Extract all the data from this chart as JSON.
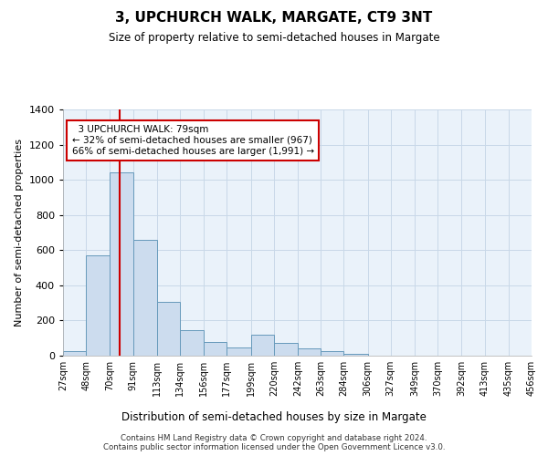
{
  "title": "3, UPCHURCH WALK, MARGATE, CT9 3NT",
  "subtitle": "Size of property relative to semi-detached houses in Margate",
  "xlabel": "Distribution of semi-detached houses by size in Margate",
  "ylabel": "Number of semi-detached properties",
  "property_label": "3 UPCHURCH WALK: 79sqm",
  "smaller_pct": "32% of semi-detached houses are smaller (967)",
  "larger_pct": "66% of semi-detached houses are larger (1,991)",
  "property_size": 79,
  "bin_edges": [
    27,
    48,
    70,
    91,
    113,
    134,
    156,
    177,
    199,
    220,
    242,
    263,
    284,
    306,
    327,
    349,
    370,
    392,
    413,
    435,
    456
  ],
  "bin_labels": [
    "27sqm",
    "48sqm",
    "70sqm",
    "91sqm",
    "113sqm",
    "134sqm",
    "156sqm",
    "177sqm",
    "199sqm",
    "220sqm",
    "242sqm",
    "263sqm",
    "284sqm",
    "306sqm",
    "327sqm",
    "349sqm",
    "370sqm",
    "392sqm",
    "413sqm",
    "435sqm",
    "456sqm"
  ],
  "bar_heights": [
    25,
    570,
    1040,
    660,
    305,
    145,
    80,
    45,
    120,
    75,
    40,
    25,
    8,
    0,
    0,
    0,
    0,
    0,
    0,
    0
  ],
  "bar_color": "#ccdcee",
  "bar_edge_color": "#6699bb",
  "vline_color": "#cc0000",
  "annotation_box_color": "#cc0000",
  "grid_color": "#c8d8e8",
  "bg_color": "#eaf2fa",
  "footer_text": "Contains HM Land Registry data © Crown copyright and database right 2024.\nContains public sector information licensed under the Open Government Licence v3.0.",
  "ylim": [
    0,
    1400
  ],
  "yticks": [
    0,
    200,
    400,
    600,
    800,
    1000,
    1200,
    1400
  ]
}
